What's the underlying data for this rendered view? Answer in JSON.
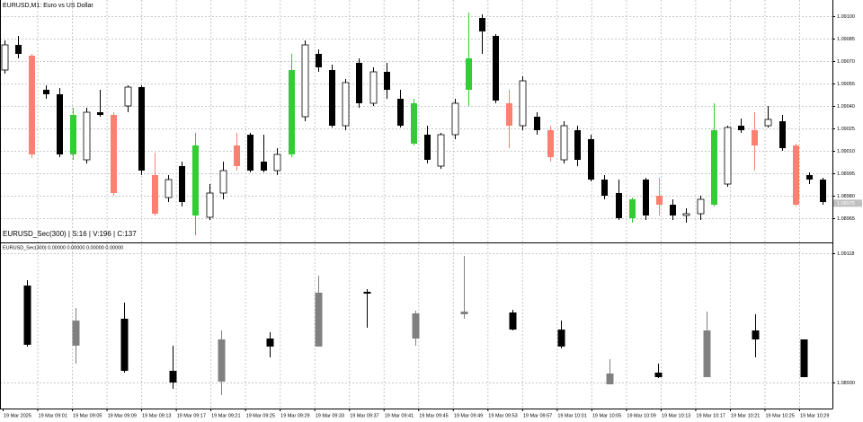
{
  "chart_data": [
    {
      "type": "candlestick",
      "title": "EURUSD,M1:  Euro vs US Dollar",
      "info": "EURUSD_Sec(300) | S:16 | V:196 | C:137",
      "categories": [
        "19 Mar 2025",
        "19 Mar 09:01",
        "19 Mar 09:05",
        "19 Mar 09:09",
        "19 Mar 09:13",
        "19 Mar 09:17",
        "19 Mar 09:21",
        "19 Mar 09:25",
        "19 Mar 09:29",
        "19 Mar 09:33",
        "19 Mar 09:37",
        "19 Mar 09:41",
        "19 Mar 09:45",
        "19 Mar 09:49",
        "19 Mar 09:53",
        "19 Mar 09:57",
        "19 Mar 10:01",
        "19 Mar 10:05",
        "19 Mar 10:09",
        "19 Mar 10:13",
        "19 Mar 10:17",
        "19 Mar 10:21",
        "19 Mar 10:25",
        "19 Mar 10:29"
      ],
      "ylim": [
        1.089488,
        1.091108
      ],
      "yticks": [
        {
          "value": 1.091,
          "label": "1.09100"
        },
        {
          "value": 1.09085,
          "label": "1.09085"
        },
        {
          "value": 1.0907,
          "label": "1.09070"
        },
        {
          "value": 1.09055,
          "label": "1.09055"
        },
        {
          "value": 1.0904,
          "label": "1.09040"
        },
        {
          "value": 1.09025,
          "label": "1.09025"
        },
        {
          "value": 1.0901,
          "label": "1.09010"
        },
        {
          "value": 1.08995,
          "label": "1.08995"
        },
        {
          "value": 1.0898,
          "label": "1.08980"
        },
        {
          "value": 1.08965,
          "label": "1.08965"
        }
      ],
      "current_price": 1.08975,
      "grid": true,
      "open": [
        1.09064,
        1.090808,
        1.090736,
        1.090508,
        1.090478,
        1.090076,
        1.09004,
        1.090358,
        1.09034,
        1.0904,
        1.090526,
        1.089938,
        1.089788,
        1.089998,
        1.089668,
        1.089656,
        1.089818,
        1.089998,
        1.090208,
        1.090028,
        1.089968,
        1.090076,
        1.090328,
        1.090748,
        1.09064,
        1.090268,
        1.090688,
        1.090418,
        1.090628,
        1.090448,
        1.090148,
        1.090208,
        1.089998,
        1.090208,
        1.090508,
        1.090988,
        1.090868,
        1.090418,
        1.090268,
        1.090328,
        1.090238,
        1.09004,
        1.090238,
        1.090178,
        1.089908,
        1.089818,
        1.08965,
        1.089908,
        1.0898,
        1.08974,
        1.089668,
        1.08968,
        1.08974,
        1.089878,
        1.090268,
        1.090238,
        1.090268,
        1.090298,
        1.090136,
        1.089938,
        1.089908
      ],
      "high": [
        1.090838,
        1.090868,
        1.090748,
        1.090538,
        1.09052,
        1.090388,
        1.090388,
        1.090508,
        1.090358,
        1.090538,
        1.090538,
        1.090088,
        1.089938,
        1.090028,
        1.09022,
        1.089878,
        1.090028,
        1.09022,
        1.09022,
        1.090208,
        1.090118,
        1.090748,
        1.090838,
        1.090778,
        1.090676,
        1.09058,
        1.090718,
        1.090658,
        1.090688,
        1.090508,
        1.090448,
        1.090268,
        1.09022,
        1.090448,
        1.091024,
        1.091012,
        1.09088,
        1.090508,
        1.090598,
        1.090358,
        1.090268,
        1.090298,
        1.090268,
        1.090208,
        1.089938,
        1.089908,
        1.089788,
        1.08992,
        1.08992,
        1.089776,
        1.089716,
        1.0898,
        1.090418,
        1.090268,
        1.090316,
        1.090358,
        1.0904,
        1.09034,
        1.090148,
        1.089956,
        1.08992
      ],
      "low": [
        1.090616,
        1.090718,
        1.090052,
        1.090448,
        1.090058,
        1.09004,
        1.090016,
        1.090328,
        1.0898,
        1.090358,
        1.089938,
        1.089668,
        1.089758,
        1.089728,
        1.089536,
        1.089638,
        1.089776,
        1.089968,
        1.089956,
        1.089956,
        1.089938,
        1.090058,
        1.090298,
        1.090628,
        1.090256,
        1.090238,
        1.090388,
        1.0904,
        1.090448,
        1.090256,
        1.090136,
        1.090016,
        1.08998,
        1.090178,
        1.0904,
        1.090748,
        1.090418,
        1.090118,
        1.090238,
        1.090208,
        1.090028,
        1.090016,
        1.089998,
        1.089896,
        1.089776,
        1.089638,
        1.08962,
        1.089638,
        1.089668,
        1.089638,
        1.08962,
        1.089638,
        1.089728,
        1.08986,
        1.09022,
        1.089968,
        1.090256,
        1.0901,
        1.089728,
        1.089878,
        1.08974
      ],
      "close": [
        1.090808,
        1.090748,
        1.090076,
        1.090478,
        1.090076,
        1.09034,
        1.090358,
        1.09034,
        1.089818,
        1.090526,
        1.089968,
        1.08968,
        1.089908,
        1.089758,
        1.090136,
        1.089818,
        1.089968,
        1.090136,
        1.089968,
        1.089968,
        1.090076,
        1.09064,
        1.090808,
        1.090658,
        1.090268,
        1.090556,
        1.090418,
        1.090628,
        1.090508,
        1.090268,
        1.090418,
        1.09004,
        1.090208,
        1.090418,
        1.090718,
        1.090898,
        1.090436,
        1.090268,
        1.090568,
        1.090238,
        1.090058,
        1.090268,
        1.09004,
        1.089908,
        1.0898,
        1.08965,
        1.089776,
        1.089668,
        1.08974,
        1.089668,
        1.08968,
        1.089776,
        1.090238,
        1.090256,
        1.090238,
        1.090136,
        1.09031,
        1.090118,
        1.08974,
        1.089908,
        1.089758
      ],
      "colors": [
        "#ffffff",
        "#000000",
        "#fa8072",
        "#000000",
        "#000000",
        "#32cd32",
        "#ffffff",
        "#000000",
        "#fa8072",
        "#ffffff",
        "#000000",
        "#fa8072",
        "#ffffff",
        "#000000",
        "#32cd32",
        "#ffffff",
        "#ffffff",
        "#fa8072",
        "#000000",
        "#000000",
        "#ffffff",
        "#32cd32",
        "#ffffff",
        "#000000",
        "#000000",
        "#ffffff",
        "#000000",
        "#ffffff",
        "#000000",
        "#000000",
        "#32cd32",
        "#000000",
        "#ffffff",
        "#ffffff",
        "#32cd32",
        "#000000",
        "#000000",
        "#fa8072",
        "#ffffff",
        "#000000",
        "#fa8072",
        "#ffffff",
        "#000000",
        "#000000",
        "#000000",
        "#000000",
        "#32cd32",
        "#000000",
        "#fa8072",
        "#000000",
        "#ffffff",
        "#ffffff",
        "#32cd32",
        "#ffffff",
        "#000000",
        "#fa8072",
        "#ffffff",
        "#000000",
        "#fa8072",
        "#000000",
        "#000000"
      ]
    },
    {
      "type": "candlestick",
      "title": "EURUSD_Sec(300) 0.00000 0.00000 0.00000 0.00000",
      "ylim": [
        1.088914,
        1.091324
      ],
      "yticks": [
        {
          "value": 1.09118,
          "label": "1.09118"
        },
        {
          "value": 1.0893,
          "label": "1.08930"
        }
      ],
      "grid": true,
      "open": [
        1.090708,
        1.089831,
        1.090224,
        1.089464,
        1.089307,
        1.089935,
        1.089818,
        1.090617,
        1.089935,
        1.090289,
        1.090315,
        1.090066,
        1.089267,
        1.089438,
        1.089372,
        1.090053,
        1.089922
      ],
      "high": [
        1.090787,
        1.090381,
        1.090459,
        1.089831,
        1.090053,
        1.090027,
        1.090852,
        1.090656,
        1.090342,
        1.091141,
        1.090355,
        1.090197,
        1.089634,
        1.089569,
        1.090328,
        1.090289,
        1.089922
      ],
      "low": [
        1.089818,
        1.089569,
        1.089438,
        1.089202,
        1.08911,
        1.08966,
        1.089818,
        1.090093,
        1.089831,
        1.090224,
        1.090053,
        1.089791,
        1.089267,
        1.089359,
        1.089372,
        1.08966,
        1.089372
      ],
      "close": [
        1.089844,
        1.090197,
        1.089464,
        1.089294,
        1.089922,
        1.089818,
        1.090604,
        1.09059,
        1.090302,
        1.090328,
        1.090066,
        1.089818,
        1.089425,
        1.089372,
        1.090053,
        1.089922,
        1.089372
      ],
      "colors": [
        "#000000",
        "#808080",
        "#000000",
        "#000000",
        "#808080",
        "#000000",
        "#808080",
        "#000000",
        "#808080",
        "#808080",
        "#000000",
        "#000000",
        "#808080",
        "#000000",
        "#808080",
        "#000000",
        "#000000"
      ]
    }
  ]
}
